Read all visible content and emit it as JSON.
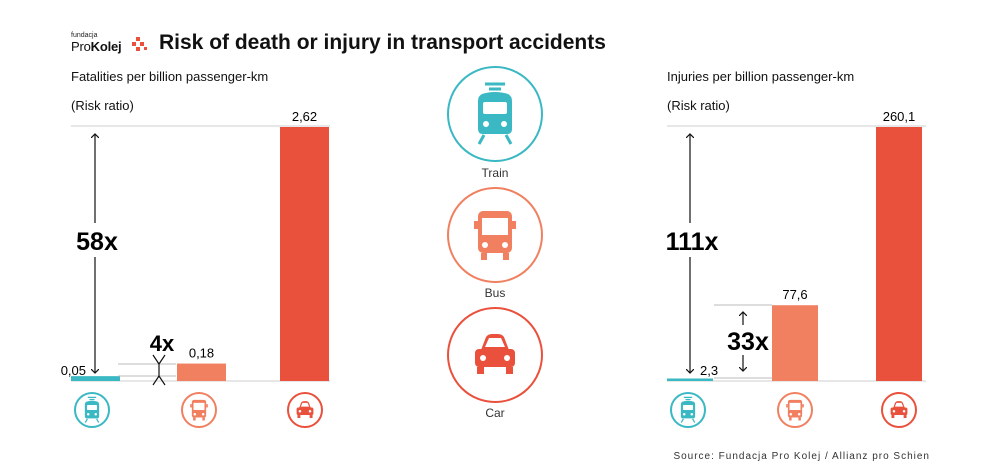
{
  "header": {
    "logo_small": "fundacja",
    "logo_pro": "Pro",
    "logo_kolej": "Kolej",
    "title": "Risk of death or injury in transport accidents"
  },
  "colors": {
    "train": "#3ab8c3",
    "bus": "#f08060",
    "car": "#e9513c"
  },
  "modes": [
    {
      "label": "Train",
      "icon": "train-icon"
    },
    {
      "label": "Bus",
      "icon": "bus-icon"
    },
    {
      "label": "Car",
      "icon": "car-icon"
    }
  ],
  "source": "Source: Fundacja Pro Kolej / Allianz pro Schien",
  "chart_data": [
    {
      "type": "bar",
      "title": "Fatalities per billion passenger-km",
      "subtitle": "(Risk ratio)",
      "categories": [
        "Train",
        "Bus",
        "Car"
      ],
      "values": [
        0.05,
        0.18,
        2.62
      ],
      "value_labels": [
        "0,05",
        "0,18",
        "2,62"
      ],
      "ylim": [
        0,
        2.62
      ],
      "annotations": [
        {
          "text": "58x",
          "from": "Train",
          "to": "Car"
        },
        {
          "text": "4x",
          "from": "Train",
          "to": "Bus"
        }
      ]
    },
    {
      "type": "bar",
      "title": "Injuries per billion passenger-km",
      "subtitle": "(Risk ratio)",
      "categories": [
        "Train",
        "Bus",
        "Car"
      ],
      "values": [
        2.3,
        77.6,
        260.1
      ],
      "value_labels": [
        "2,3",
        "77,6",
        "260,1"
      ],
      "ylim": [
        0,
        260.1
      ],
      "annotations": [
        {
          "text": "111x",
          "from": "Train",
          "to": "Car"
        },
        {
          "text": "33x",
          "from": "Train",
          "to": "Bus"
        }
      ]
    }
  ]
}
